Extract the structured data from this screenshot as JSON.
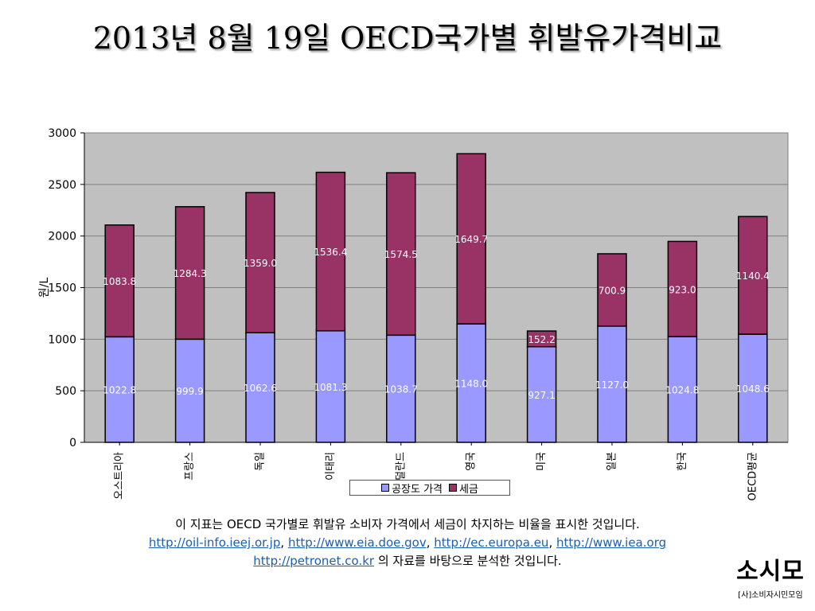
{
  "title": "2013년 8월 19일 OECD국가별 휘발유가격비교",
  "chart_data": {
    "type": "bar",
    "stacked": true,
    "ylabel": "원/L",
    "ylim": [
      0,
      3000
    ],
    "yticks": [
      0,
      500,
      1000,
      1500,
      2000,
      2500,
      3000
    ],
    "grid": true,
    "legend_position": "bottom",
    "categories": [
      "오스트리아",
      "프랑스",
      "독일",
      "이태리",
      "네덜란드",
      "영국",
      "미국",
      "일본",
      "한국",
      "OECD평균"
    ],
    "series": [
      {
        "name": "공장도 가격",
        "color": "#9999ff",
        "values": [
          1022.8,
          999.9,
          1062.6,
          1081.3,
          1038.7,
          1148.0,
          927.1,
          1127.0,
          1024.8,
          1048.6
        ],
        "labels": [
          "1022.8",
          "999.9",
          "1062.6",
          "1081.3",
          "1038.7",
          "1148.0",
          "927.1",
          "1127.0",
          "1024.8",
          "1048.6"
        ]
      },
      {
        "name": "세금",
        "color": "#993366",
        "values": [
          1083.8,
          1284.3,
          1359.0,
          1536.4,
          1574.5,
          1649.7,
          152.2,
          700.9,
          923.0,
          1140.4
        ],
        "labels": [
          "1083.8",
          "1284.3",
          "1359.0",
          "1536.4",
          "1574.5",
          "1649.7",
          "152.2",
          "700.9",
          "923.0",
          "1140.4"
        ]
      }
    ],
    "colors": {
      "plot_bg": "#c0c0c0",
      "grid": "#808080",
      "label": "#ffffff"
    }
  },
  "caption": {
    "line1": "이 지표는 OECD 국가별로 휘발유 소비자 가격에서 세금이 차지하는 비율을 표시한 것입니다.",
    "links": [
      "http://oil-info.ieej.or.jp",
      "http://www.eia.doe.gov",
      "http://ec.europa.eu",
      "http://www.iea.org",
      "http://petronet.co.kr"
    ],
    "sep": ",",
    "tail": "의 자료를 바탕으로 분석한 것입니다."
  },
  "logo": {
    "mark": "소시모",
    "org": "[사]소비자시민모임"
  }
}
